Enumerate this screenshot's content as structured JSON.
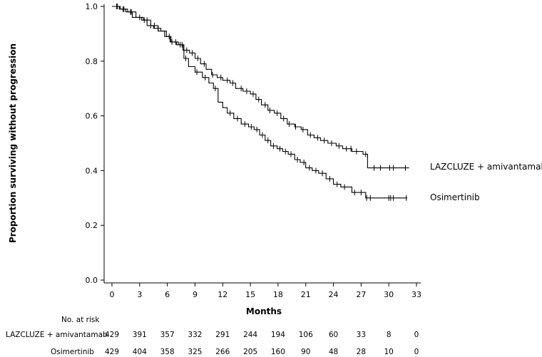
{
  "chart_data": {
    "type": "line",
    "subtype": "kaplan-meier",
    "xlabel": "Months",
    "ylabel": "Proportion surviving without progression",
    "xlim": [
      0,
      33
    ],
    "ylim": [
      0.0,
      1.0
    ],
    "x_ticks": [
      0,
      3,
      6,
      9,
      12,
      15,
      18,
      21,
      24,
      27,
      30,
      33
    ],
    "y_ticks": [
      0.0,
      0.2,
      0.4,
      0.6,
      0.8,
      1.0
    ],
    "y_tick_labels": [
      "0.0",
      "0.2",
      "0.4",
      "0.6",
      "0.8",
      "1.0"
    ],
    "series": [
      {
        "name": "LAZCLUZE + amivantamab",
        "x": [
          0,
          0.8,
          1.5,
          2.2,
          3.2,
          3.8,
          4.5,
          5.3,
          5.9,
          6.4,
          7.0,
          7.7,
          8.4,
          9.0,
          9.6,
          10.2,
          10.8,
          11.4,
          12.0,
          12.8,
          13.4,
          14.2,
          15.0,
          15.6,
          16.2,
          16.9,
          17.6,
          18.3,
          19.0,
          19.8,
          20.5,
          21.2,
          21.9,
          22.6,
          23.4,
          24.3,
          25.0,
          26.0,
          27.2,
          27.7,
          32.2
        ],
        "y": [
          1.0,
          0.99,
          0.98,
          0.96,
          0.95,
          0.93,
          0.92,
          0.91,
          0.89,
          0.87,
          0.86,
          0.84,
          0.83,
          0.81,
          0.79,
          0.77,
          0.75,
          0.74,
          0.73,
          0.72,
          0.7,
          0.69,
          0.68,
          0.66,
          0.64,
          0.62,
          0.61,
          0.59,
          0.57,
          0.56,
          0.55,
          0.53,
          0.52,
          0.51,
          0.5,
          0.49,
          0.48,
          0.47,
          0.46,
          0.41,
          0.41
        ],
        "censor_x": [
          0.6,
          1.3,
          2.0,
          3.5,
          4.2,
          5.0,
          6.2,
          6.9,
          7.4,
          8.1,
          8.7,
          9.3,
          10.0,
          10.9,
          11.8,
          12.5,
          13.1,
          14.0,
          14.6,
          15.3,
          15.9,
          16.6,
          17.1,
          17.9,
          18.6,
          19.2,
          19.9,
          20.7,
          21.5,
          22.3,
          23.0,
          23.8,
          24.6,
          25.4,
          25.9,
          26.5,
          27.5,
          28.4,
          29.1,
          30.1,
          30.5,
          31.8
        ]
      },
      {
        "name": "Osimertinib",
        "x": [
          0,
          0.9,
          1.7,
          2.6,
          3.4,
          4.2,
          5.0,
          5.7,
          6.3,
          7.2,
          7.8,
          8.3,
          9.0,
          9.8,
          10.5,
          11.0,
          11.5,
          12.0,
          12.5,
          13.2,
          14.0,
          14.8,
          15.4,
          16.0,
          16.6,
          17.2,
          17.9,
          18.5,
          19.1,
          19.8,
          20.4,
          21.0,
          21.7,
          22.4,
          23.2,
          24.0,
          24.8,
          26.0,
          27.5,
          32.0
        ],
        "y": [
          1.0,
          0.99,
          0.98,
          0.96,
          0.95,
          0.93,
          0.91,
          0.89,
          0.87,
          0.86,
          0.81,
          0.78,
          0.76,
          0.74,
          0.72,
          0.7,
          0.65,
          0.63,
          0.61,
          0.59,
          0.57,
          0.56,
          0.55,
          0.53,
          0.51,
          0.49,
          0.48,
          0.47,
          0.46,
          0.44,
          0.43,
          0.41,
          0.4,
          0.39,
          0.37,
          0.35,
          0.34,
          0.32,
          0.3,
          0.3
        ],
        "censor_x": [
          0.5,
          1.2,
          2.1,
          3.0,
          3.8,
          4.6,
          6.5,
          7.6,
          8.0,
          9.2,
          10.1,
          11.2,
          12.8,
          13.6,
          14.4,
          15.1,
          15.7,
          16.3,
          16.9,
          17.5,
          18.2,
          18.8,
          19.4,
          20.1,
          20.8,
          21.4,
          22.1,
          22.8,
          23.6,
          24.4,
          25.2,
          26.3,
          27.0,
          27.6,
          28.0,
          30.0,
          30.2,
          30.5,
          31.9
        ]
      }
    ],
    "risk_table": {
      "header": "No. at risk",
      "rows": [
        {
          "label": "LAZCLUZE + amivantamab",
          "values": [
            "429",
            "391",
            "357",
            "332",
            "291",
            "244",
            "194",
            "106",
            "60",
            "33",
            "8",
            "0"
          ]
        },
        {
          "label": "Osimertinib",
          "values": [
            "429",
            "404",
            "358",
            "325",
            "266",
            "205",
            "160",
            "90",
            "48",
            "28",
            "10",
            "0"
          ]
        }
      ]
    }
  }
}
